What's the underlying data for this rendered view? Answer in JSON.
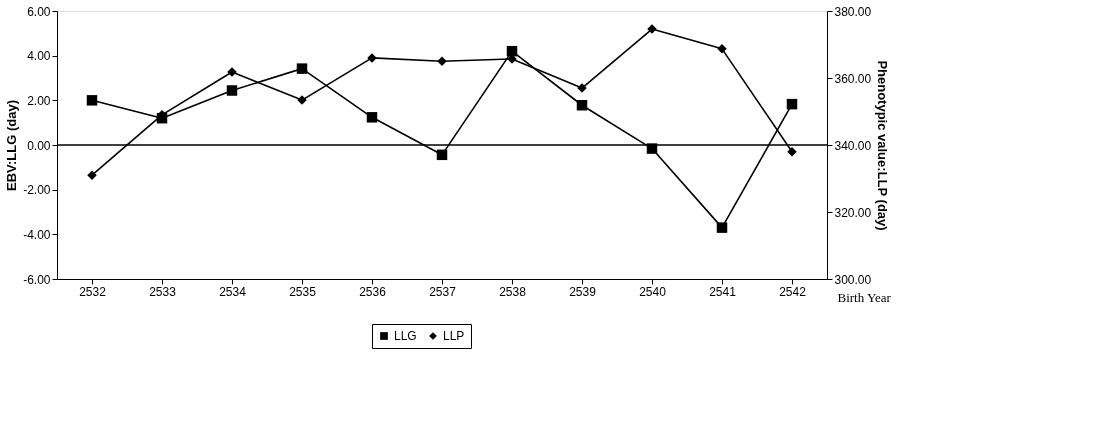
{
  "chart_data": {
    "type": "line",
    "categories": [
      "2532",
      "2533",
      "2534",
      "2535",
      "2536",
      "2537",
      "2538",
      "2539",
      "2540",
      "2541",
      "2542"
    ],
    "xlabel": "Birth Year",
    "ylabel": "EBV:LLG (day)",
    "y2label": "Phenotypic value:LLP (day)",
    "series": [
      {
        "name": "LLG",
        "color": "#000000",
        "marker": "square",
        "values": [
          2.0,
          1.2,
          2.44,
          3.42,
          1.24,
          -0.44,
          4.2,
          1.78,
          -0.16,
          -3.7,
          1.83
        ]
      },
      {
        "name": "LLP",
        "color": "#000000",
        "marker": "diamond",
        "axis": "y2",
        "values": [
          331,
          349,
          361.8,
          353.4,
          366,
          365,
          365.7,
          357,
          374.6,
          368.7,
          338
        ]
      }
    ],
    "ylim": [
      -6,
      6
    ],
    "yticks": [
      {
        "value": -6,
        "label": "-6.00"
      },
      {
        "value": -4,
        "label": "-4.00"
      },
      {
        "value": -2,
        "label": "-2.00"
      },
      {
        "value": 0,
        "label": "0.00"
      },
      {
        "value": 2,
        "label": "2.00"
      },
      {
        "value": 4,
        "label": "4.00"
      },
      {
        "value": 6,
        "label": "6.00"
      }
    ],
    "y2lim": [
      300,
      380
    ],
    "y2ticks": [
      {
        "value": 300,
        "label": "300.00"
      },
      {
        "value": 320,
        "label": "320.00"
      },
      {
        "value": 340,
        "label": "340.00"
      },
      {
        "value": 360,
        "label": "360.00"
      },
      {
        "value": 380,
        "label": "380.00"
      }
    ],
    "ref_lines": [
      {
        "axis": "y",
        "value": 0,
        "color": "#000000"
      }
    ],
    "grid": false,
    "legend": "bottom",
    "line_style": "solid"
  }
}
